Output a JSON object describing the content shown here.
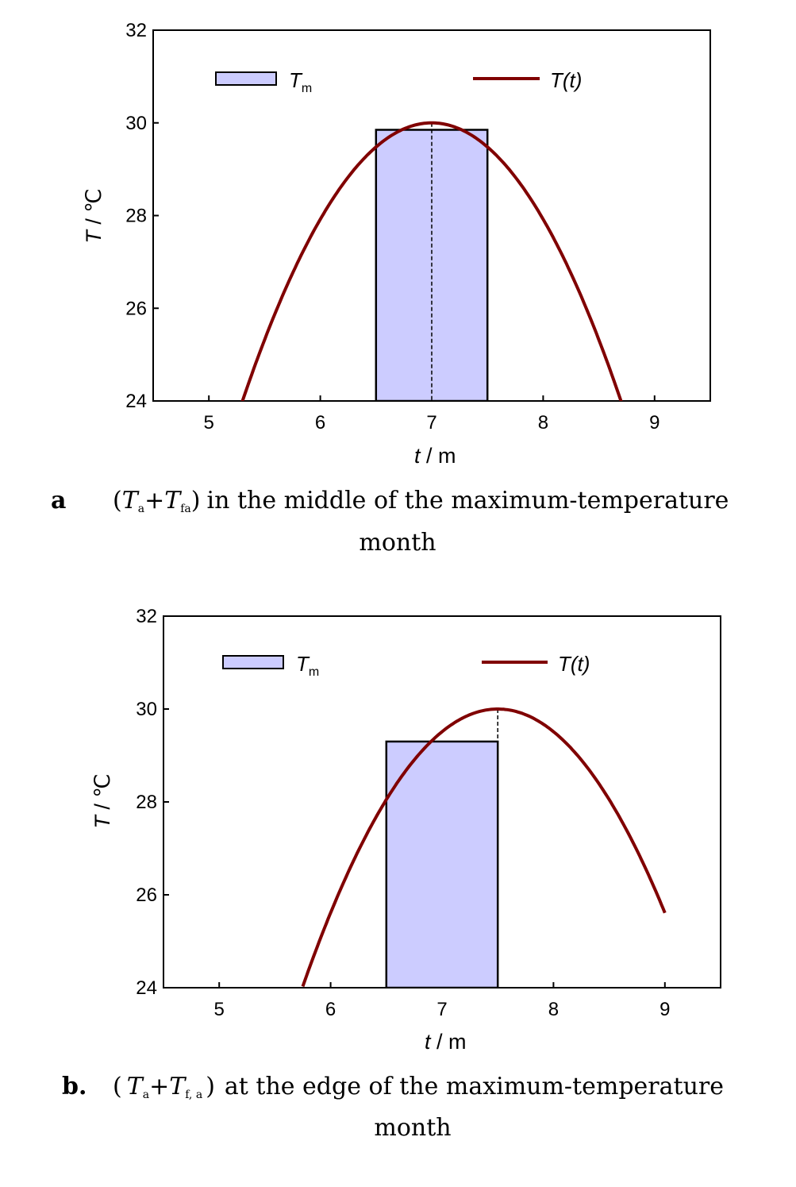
{
  "chart_data": [
    {
      "type": "bar",
      "panel_label": "a",
      "caption": {
        "open_paren": "(",
        "ta": "T",
        "ta_sub": "a",
        "plus": "+",
        "tf": "T",
        "tf_sub": "fa",
        "close_paren": ")",
        "line1": "in the middle of the maximum-temperature",
        "line2": "month"
      },
      "xlabel": {
        "var": "t",
        "unit": " / m"
      },
      "ylabel": {
        "var": "T",
        "unit": " / ℃"
      },
      "xlim": [
        4.5,
        9.5
      ],
      "ylim": [
        24,
        32
      ],
      "xticks": [
        5,
        6,
        7,
        8,
        9
      ],
      "yticks": [
        24,
        26,
        28,
        30,
        32
      ],
      "legend": [
        {
          "type": "bar",
          "label": "T",
          "sub": "m"
        },
        {
          "type": "line",
          "label": "T(t)"
        }
      ],
      "bar": {
        "x0": 6.5,
        "x1": 7.5,
        "value": 29.85,
        "color": "#ccccff"
      },
      "curve": {
        "name": "T(t)",
        "peak_t": 7.0,
        "peak_T": 30.0,
        "t_range": [
          5.3,
          8.7
        ],
        "k": 2.08,
        "color": "#800000"
      },
      "guide": {
        "t": 7.0
      }
    },
    {
      "type": "bar",
      "panel_label": "b.",
      "caption": {
        "open_paren": "(",
        "ta": "T",
        "ta_sub": "a",
        "plus": "+",
        "tf": "T",
        "tf_sub": "f, a",
        "close_paren": ")",
        "line1": "at the edge of the maximum-temperature",
        "line2": "month"
      },
      "xlabel": {
        "var": "t",
        "unit": " / m"
      },
      "ylabel": {
        "var": "T",
        "unit": " / ℃"
      },
      "xlim": [
        4.5,
        9.5
      ],
      "ylim": [
        24,
        32
      ],
      "xticks": [
        5,
        6,
        7,
        8,
        9
      ],
      "yticks": [
        24,
        26,
        28,
        30,
        32
      ],
      "legend": [
        {
          "type": "bar",
          "label": "T",
          "sub": "m"
        },
        {
          "type": "line",
          "label": "T(t)"
        }
      ],
      "bar": {
        "x0": 6.5,
        "x1": 7.5,
        "value": 29.3,
        "color": "#ccccff"
      },
      "curve": {
        "name": "T(t)",
        "peak_t": 7.5,
        "peak_T": 30.0,
        "t_range": [
          5.75,
          9.0
        ],
        "k": 1.95,
        "color": "#800000"
      },
      "guide": {
        "t": 7.5
      }
    }
  ]
}
